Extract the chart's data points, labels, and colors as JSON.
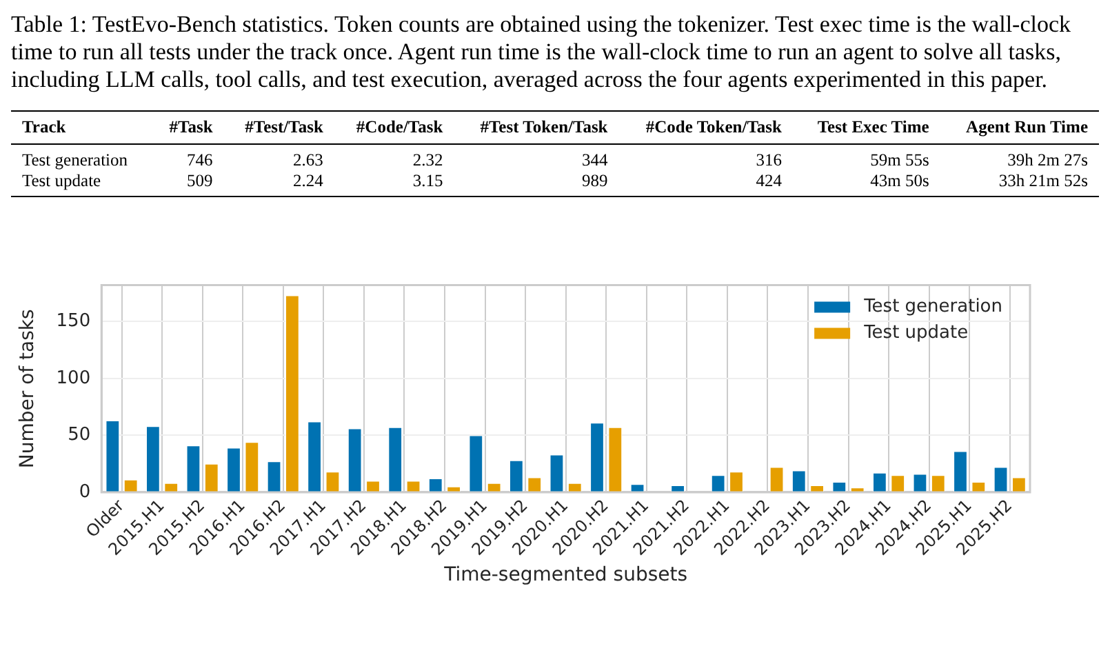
{
  "chart_data": [
    {
      "type": "other",
      "title": "Table 1: TestEvo-Bench statistics. Token counts are obtained using the tokenizer. Test exec time is the wall-clock time to run all tests under the track once. Agent run time is the wall-clock time to run an agent to solve all tasks, including LLM calls, tool calls, and test execution, averaged across the four agents experimented in this paper.",
      "categories": [
        "Track",
        "#Task",
        "#Test/Task",
        "#Code/Task",
        "#Test Token/Task",
        "#Code Token/Task",
        "Test Exec Time",
        "Agent Run Time"
      ],
      "annotations": [
        "Test generation",
        "746",
        "2.63",
        "2.32",
        "344",
        "316",
        "59m 55s",
        "39h 2m 27s",
        "Test update",
        "509",
        "2.24",
        "3.15",
        "989",
        "424",
        "43m 50s",
        "33h 21m 52s"
      ]
    },
    {
      "type": "bar",
      "xlabel": "Time-segmented subsets",
      "ylabel": "Number of tasks",
      "categories": [
        "Older",
        "2015.H1",
        "2015.H2",
        "2016.H1",
        "2016.H2",
        "2017.H1",
        "2017.H2",
        "2018.H1",
        "2018.H2",
        "2019.H1",
        "2019.H2",
        "2020.H1",
        "2020.H2",
        "2021.H1",
        "2021.H2",
        "2022.H1",
        "2022.H2",
        "2023.H1",
        "2023.H2",
        "2024.H1",
        "2024.H2",
        "2025.H1",
        "2025.H2"
      ],
      "series": [
        {
          "name": "Test generation",
          "color": "#0072b2",
          "values": [
            63,
            58,
            41,
            39,
            27,
            62,
            56,
            57,
            12,
            50,
            28,
            33,
            61,
            7,
            6,
            15,
            0,
            19,
            9,
            17,
            16,
            36,
            22
          ]
        },
        {
          "name": "Test update",
          "color": "#e69f00",
          "values": [
            11,
            8,
            25,
            44,
            173,
            18,
            10,
            10,
            5,
            8,
            13,
            8,
            57,
            0,
            0,
            18,
            22,
            6,
            4,
            15,
            15,
            9,
            13
          ]
        }
      ],
      "ylim": [
        0,
        182
      ],
      "yticks": [
        0,
        50,
        100,
        150
      ],
      "grid": true,
      "legend": "top right"
    }
  ]
}
